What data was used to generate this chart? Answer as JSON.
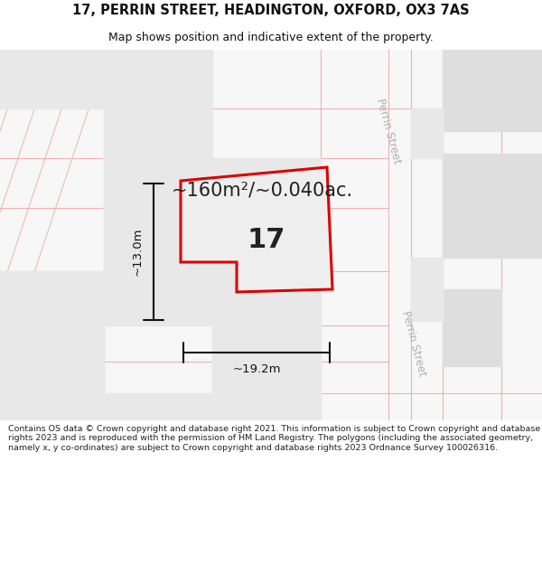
{
  "title_line1": "17, PERRIN STREET, HEADINGTON, OXFORD, OX3 7AS",
  "title_line2": "Map shows position and indicative extent of the property.",
  "footer_text": "Contains OS data © Crown copyright and database right 2021. This information is subject to Crown copyright and database rights 2023 and is reproduced with the permission of HM Land Registry. The polygons (including the associated geometry, namely x, y co-ordinates) are subject to Crown copyright and database rights 2023 Ordnance Survey 100026316.",
  "area_label": "~160m²/~0.040ac.",
  "dim_width": "~19.2m",
  "dim_height": "~13.0m",
  "number_label": "17",
  "bg_color": "#f7f7f7",
  "block_color": "#dedede",
  "block_color2": "#e8e8e8",
  "road_line_color": "#f0b0b0",
  "property_outline_color": "#dd0000",
  "property_fill_color": "#eeeeee",
  "street_label_color": "#b0b0b0",
  "dim_line_color": "#111111",
  "title_color": "#111111",
  "footer_color": "#222222",
  "white": "#ffffff"
}
